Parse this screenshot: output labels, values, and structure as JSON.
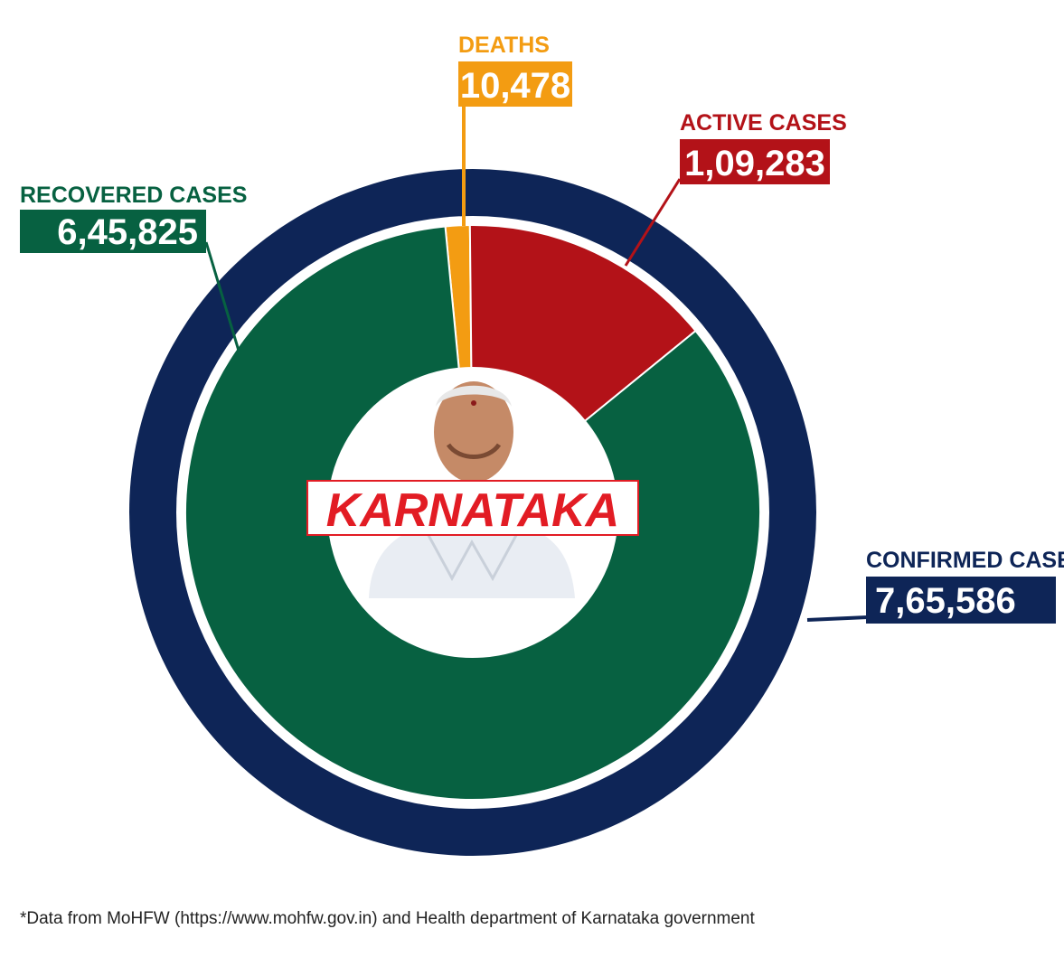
{
  "chart_data": {
    "type": "pie",
    "subtype": "donut",
    "center_label": "KARNATAKA",
    "total": {
      "label": "CONFIRMED CASES",
      "value": 765586,
      "value_text": "7,65,586",
      "color": "#0e2557"
    },
    "slices": [
      {
        "key": "recovered",
        "label": "RECOVERED CASES",
        "value": 645825,
        "value_text": "6,45,825",
        "color": "#076141"
      },
      {
        "key": "deaths",
        "label": "DEATHS",
        "value": 10478,
        "value_text": "10,478",
        "color": "#f39c12"
      },
      {
        "key": "active",
        "label": "ACTIVE CASES",
        "value": 109283,
        "value_text": "1,09,283",
        "color": "#b31218"
      }
    ]
  },
  "center_badge": {
    "text_color": "#e21c24",
    "border_color": "#e21c24"
  },
  "footnote": "*Data from MoHFW (https://www.mohfw.gov.in) and Health department of Karnataka government"
}
